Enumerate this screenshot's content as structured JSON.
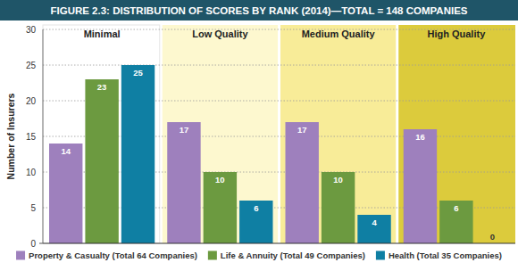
{
  "chart_data": {
    "type": "bar",
    "title": "FIGURE 2.3: DISTRIBUTION OF SCORES BY RANK (2014)—TOTAL = 148 COMPANIES",
    "ylabel": "Number of Insurers",
    "categories": [
      "Minimal",
      "Low Quality",
      "Medium Quality",
      "High Quality"
    ],
    "series": [
      {
        "name": "Property & Casualty (Total 64 Companies)",
        "color": "#9e80bd",
        "values": [
          14,
          17,
          17,
          16
        ]
      },
      {
        "name": "Life & Annuity (Total 49 Companies)",
        "color": "#6c9a40",
        "values": [
          23,
          10,
          10,
          6
        ]
      },
      {
        "name": "Health (Total 35 Companies)",
        "color": "#0f7fa3",
        "values": [
          25,
          6,
          4,
          0
        ]
      }
    ],
    "ylim": [
      0,
      30
    ],
    "yticks": [
      0,
      5,
      10,
      15,
      20,
      25,
      30
    ],
    "grid": true,
    "data_labels": true,
    "legend": "bottom"
  }
}
